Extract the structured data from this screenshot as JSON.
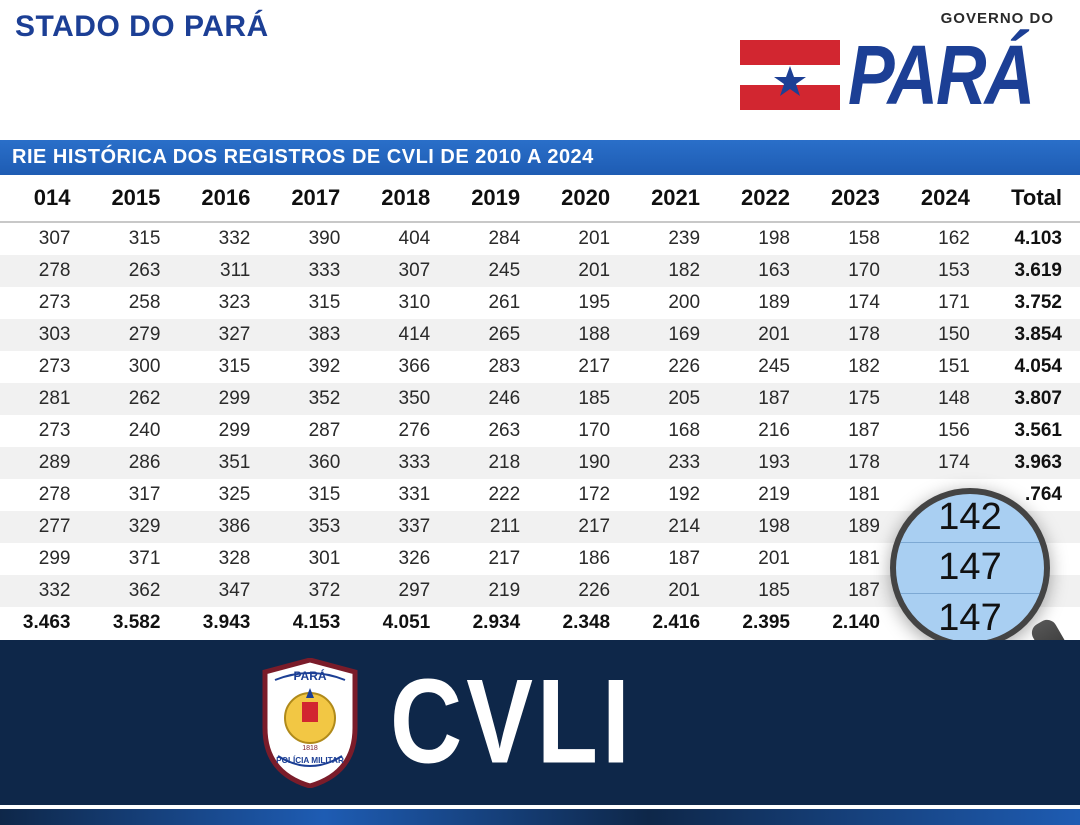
{
  "header": {
    "title": "STADO DO PARÁ",
    "gov_small": "GOVERNO DO",
    "gov_brand": "PARÁ"
  },
  "banner": "RIE HISTÓRICA DOS REGISTROS DE CVLI DE 2010 A 2024",
  "table": {
    "columns": [
      "014",
      "2015",
      "2016",
      "2017",
      "2018",
      "2019",
      "2020",
      "2021",
      "2022",
      "2023",
      "2024",
      "Total"
    ],
    "col_align": "right",
    "header_fontsize": 22,
    "cell_fontsize": 19,
    "row_bg_even": "#f1f1f1",
    "row_bg_odd": "#ffffff",
    "rows": [
      [
        "307",
        "315",
        "332",
        "390",
        "404",
        "284",
        "201",
        "239",
        "198",
        "158",
        "162",
        "4.103"
      ],
      [
        "278",
        "263",
        "311",
        "333",
        "307",
        "245",
        "201",
        "182",
        "163",
        "170",
        "153",
        "3.619"
      ],
      [
        "273",
        "258",
        "323",
        "315",
        "310",
        "261",
        "195",
        "200",
        "189",
        "174",
        "171",
        "3.752"
      ],
      [
        "303",
        "279",
        "327",
        "383",
        "414",
        "265",
        "188",
        "169",
        "201",
        "178",
        "150",
        "3.854"
      ],
      [
        "273",
        "300",
        "315",
        "392",
        "366",
        "283",
        "217",
        "226",
        "245",
        "182",
        "151",
        "4.054"
      ],
      [
        "281",
        "262",
        "299",
        "352",
        "350",
        "246",
        "185",
        "205",
        "187",
        "175",
        "148",
        "3.807"
      ],
      [
        "273",
        "240",
        "299",
        "287",
        "276",
        "263",
        "170",
        "168",
        "216",
        "187",
        "156",
        "3.561"
      ],
      [
        "289",
        "286",
        "351",
        "360",
        "333",
        "218",
        "190",
        "233",
        "193",
        "178",
        "174",
        "3.963"
      ],
      [
        "278",
        "317",
        "325",
        "315",
        "331",
        "222",
        "172",
        "192",
        "219",
        "181",
        "",
        ".764"
      ],
      [
        "277",
        "329",
        "386",
        "353",
        "337",
        "211",
        "217",
        "214",
        "198",
        "189",
        "",
        ""
      ],
      [
        "299",
        "371",
        "328",
        "301",
        "326",
        "217",
        "186",
        "187",
        "201",
        "181",
        "",
        ""
      ],
      [
        "332",
        "362",
        "347",
        "372",
        "297",
        "219",
        "226",
        "201",
        "185",
        "187",
        "",
        ""
      ]
    ],
    "sum_row": [
      "3.463",
      "3.582",
      "3.943",
      "4.153",
      "4.051",
      "2.934",
      "2.348",
      "2.416",
      "2.395",
      "2.140",
      "",
      ""
    ]
  },
  "magnifier": {
    "values": [
      "142",
      "147",
      "147"
    ],
    "lens_bg": "#a9cff2",
    "ring_color": "#444444"
  },
  "bottom": {
    "label": "CVLI",
    "band_bg": "#0e2749",
    "shield_text_top": "PARÁ",
    "shield_text_bottom": "POLÍCIA MILITAR"
  },
  "logo_colors": {
    "flag_red": "#d22630",
    "flag_white": "#ffffff",
    "flag_blue_star": "#1c3f95",
    "brand_blue": "#1c3f95"
  }
}
